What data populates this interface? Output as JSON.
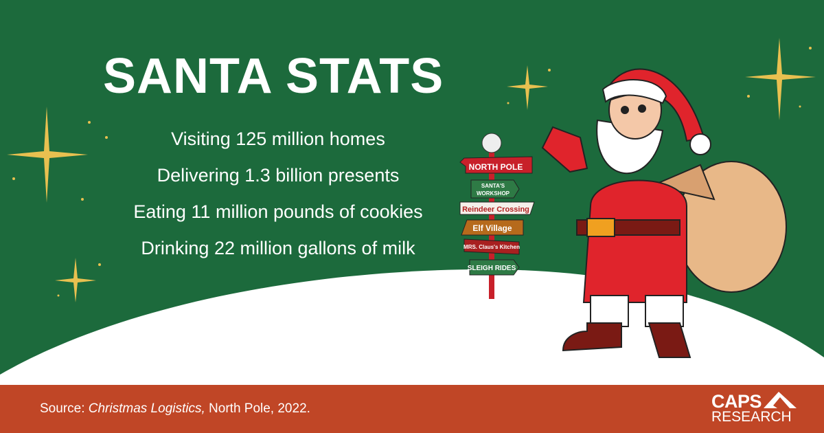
{
  "title": "SANTA STATS",
  "stats": [
    "Visiting 125 million homes",
    "Delivering 1.3 billion presents",
    "Eating 11 million pounds of cookies",
    "Drinking 22 million gallons of milk"
  ],
  "signpost": [
    "NORTH POLE",
    "SANTA'S",
    "WORKSHOP",
    "Reindeer Crossing",
    "Elf Village",
    "MRS. Claus's Kitchen",
    "SLEIGH RIDES"
  ],
  "footer": {
    "source_prefix": "Source: ",
    "source_title": "Christmas Logistics,",
    "source_suffix": " North Pole, 2022."
  },
  "logo": {
    "line1": "CAPS",
    "line2": "RESEARCH"
  },
  "colors": {
    "background": "#1c6a3c",
    "footer": "#c04626",
    "snow": "#ffffff",
    "star": "#e8c050",
    "santa_red": "#e0242c"
  },
  "icons": [
    "sparkle-star-icon",
    "santa-illustration",
    "signpost-illustration",
    "mountain-logo-icon"
  ]
}
